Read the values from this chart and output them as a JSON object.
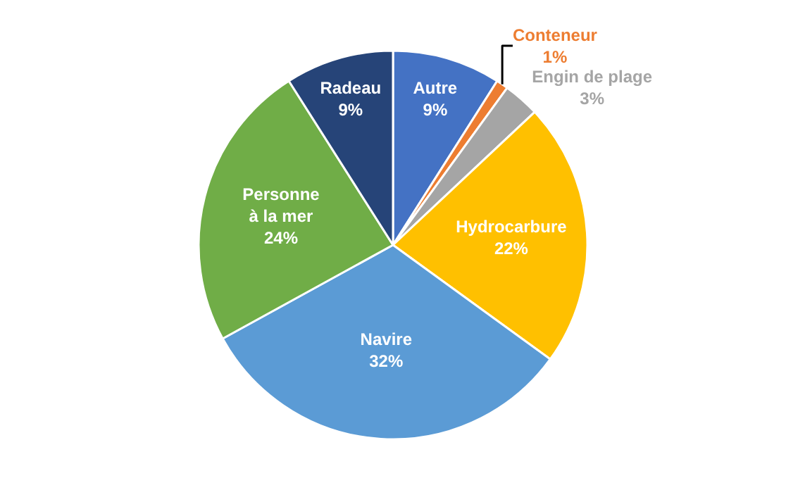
{
  "chart_data": {
    "type": "pie",
    "categories": [
      "Autre",
      "Conteneur",
      "Engin de plage",
      "Hydrocarbure",
      "Navire",
      "Personne à la mer",
      "Radeau"
    ],
    "values": [
      9,
      1,
      3,
      22,
      32,
      24,
      9
    ],
    "colors": [
      "#4472c4",
      "#ed7d31",
      "#a5a5a5",
      "#ffc000",
      "#5b9bd5",
      "#70ad47",
      "#264478"
    ],
    "value_labels": [
      "9%",
      "1%",
      "3%",
      "22%",
      "32%",
      "24%",
      "9%"
    ],
    "legend": false
  }
}
